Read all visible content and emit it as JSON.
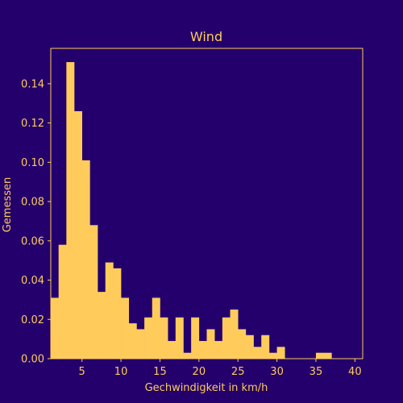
{
  "colors": {
    "background": "#24006c",
    "bars": "#ffcc5c",
    "text": "#ffcc5c",
    "frame": "#ffcc5c"
  },
  "chart_data": {
    "type": "bar",
    "title": "Wind",
    "xlabel": "Gechwindigkeit in km/h",
    "ylabel": "Gemessen",
    "xlim": [
      1,
      41
    ],
    "ylim": [
      0,
      0.158
    ],
    "bin_width": 1,
    "x_ticks": [
      5,
      10,
      15,
      20,
      25,
      30,
      35,
      40
    ],
    "x_tick_labels": [
      "5",
      "10",
      "15",
      "20",
      "25",
      "30",
      "35",
      "40"
    ],
    "y_ticks": [
      0,
      0.02,
      0.04,
      0.06,
      0.08,
      0.1,
      0.12,
      0.14
    ],
    "y_tick_labels": [
      "0.00",
      "0.02",
      "0.04",
      "0.06",
      "0.08",
      "0.10",
      "0.12",
      "0.14"
    ],
    "grid": false,
    "legend": "none",
    "bins": [
      {
        "x0": 1,
        "value": 0.031
      },
      {
        "x0": 2,
        "value": 0.058
      },
      {
        "x0": 3,
        "value": 0.151
      },
      {
        "x0": 4,
        "value": 0.126
      },
      {
        "x0": 5,
        "value": 0.101
      },
      {
        "x0": 6,
        "value": 0.068
      },
      {
        "x0": 7,
        "value": 0.034
      },
      {
        "x0": 8,
        "value": 0.049
      },
      {
        "x0": 9,
        "value": 0.046
      },
      {
        "x0": 10,
        "value": 0.031
      },
      {
        "x0": 11,
        "value": 0.018
      },
      {
        "x0": 12,
        "value": 0.015
      },
      {
        "x0": 13,
        "value": 0.021
      },
      {
        "x0": 14,
        "value": 0.031
      },
      {
        "x0": 15,
        "value": 0.021
      },
      {
        "x0": 16,
        "value": 0.009
      },
      {
        "x0": 17,
        "value": 0.021
      },
      {
        "x0": 18,
        "value": 0.003
      },
      {
        "x0": 19,
        "value": 0.021
      },
      {
        "x0": 20,
        "value": 0.009
      },
      {
        "x0": 21,
        "value": 0.015
      },
      {
        "x0": 22,
        "value": 0.009
      },
      {
        "x0": 23,
        "value": 0.021
      },
      {
        "x0": 24,
        "value": 0.025
      },
      {
        "x0": 25,
        "value": 0.015
      },
      {
        "x0": 26,
        "value": 0.012
      },
      {
        "x0": 27,
        "value": 0.006
      },
      {
        "x0": 28,
        "value": 0.012
      },
      {
        "x0": 29,
        "value": 0.003
      },
      {
        "x0": 30,
        "value": 0.006
      },
      {
        "x0": 31,
        "value": 0
      },
      {
        "x0": 32,
        "value": 0
      },
      {
        "x0": 33,
        "value": 0
      },
      {
        "x0": 34,
        "value": 0
      },
      {
        "x0": 35,
        "value": 0.003
      },
      {
        "x0": 36,
        "value": 0.003
      },
      {
        "x0": 37,
        "value": 0
      },
      {
        "x0": 38,
        "value": 0
      },
      {
        "x0": 39,
        "value": 0
      },
      {
        "x0": 40,
        "value": 0
      }
    ]
  }
}
